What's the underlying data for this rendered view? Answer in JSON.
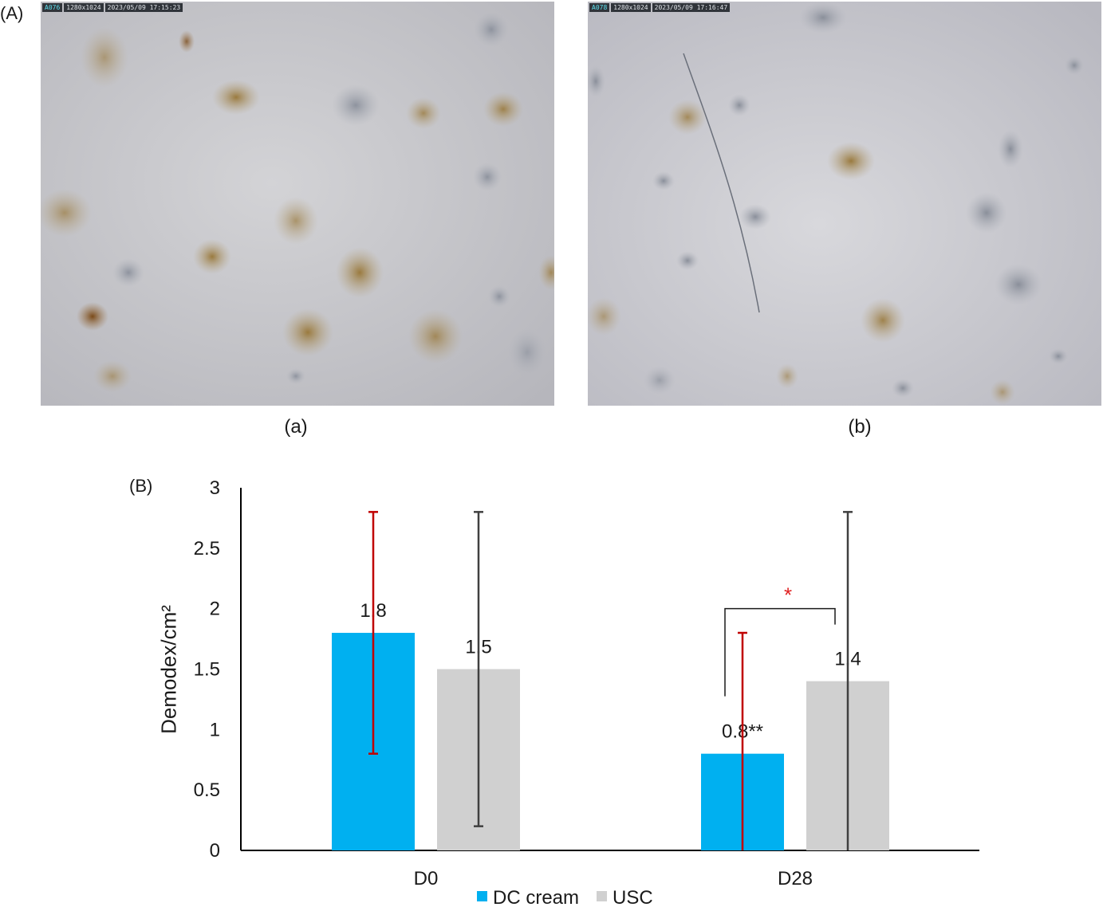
{
  "panels": {
    "A": {
      "label": "(A)"
    },
    "a": {
      "caption": "(a)",
      "hud": {
        "id": "A076",
        "resolution": "1280x1024",
        "timestamp": "2023/05/09 17:15:23"
      }
    },
    "b": {
      "caption": "(b)",
      "hud": {
        "id": "A078",
        "resolution": "1280x1024",
        "timestamp": "2023/05/09 17:16:47"
      }
    },
    "B": {
      "label": "(B)"
    }
  },
  "chart_data": {
    "type": "bar",
    "title": "",
    "xlabel": "",
    "ylabel": "Demodex/cm²",
    "ylim": [
      0,
      3
    ],
    "yticks": [
      {
        "value": 0,
        "label": "0"
      },
      {
        "value": 0.5,
        "label": "0.5"
      },
      {
        "value": 1,
        "label": "1"
      },
      {
        "value": 1.5,
        "label": "1.5"
      },
      {
        "value": 2,
        "label": "2"
      },
      {
        "value": 2.5,
        "label": "2.5"
      },
      {
        "value": 3,
        "label": "3"
      }
    ],
    "categories": [
      "D0",
      "D28"
    ],
    "grid": false,
    "legend_position": "bottom",
    "series": [
      {
        "name": "DC cream",
        "color": "#00b0f0",
        "error_color": "#c00000",
        "values": [
          1.8,
          0.8
        ],
        "labels": [
          "1.8",
          "0.8**"
        ],
        "error_low": [
          0.8,
          0
        ],
        "error_high": [
          2.8,
          1.8
        ]
      },
      {
        "name": "USC",
        "color": "#d0d0d0",
        "error_color": "#404040",
        "values": [
          1.5,
          1.4
        ],
        "labels": [
          "1.5",
          "1.4"
        ],
        "error_low": [
          0.2,
          0
        ],
        "error_high": [
          2.8,
          2.8
        ]
      }
    ],
    "annotations": [
      {
        "text": "*",
        "color": "#e02020",
        "category": "D28",
        "between": [
          "DC cream",
          "USC"
        ],
        "level": 2.0
      }
    ]
  }
}
